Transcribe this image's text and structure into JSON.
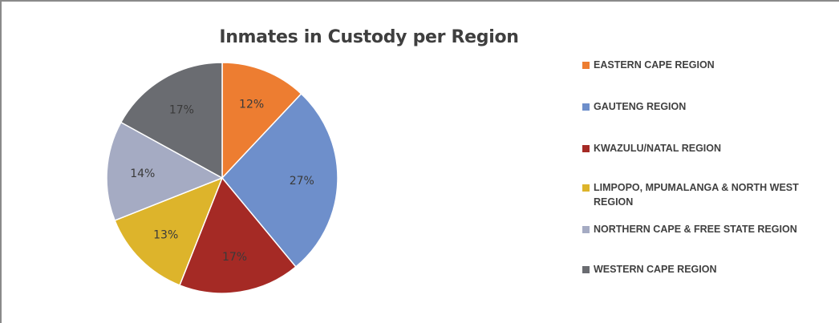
{
  "chart_data": {
    "type": "pie",
    "title": "Inmates in Custody per Region",
    "legend_position": "right",
    "categories": [
      "EASTERN CAPE REGION",
      "GAUTENG REGION",
      "KWAZULU/NATAL REGION",
      "LIMPOPO, MPUMALANGA & NORTH WEST REGION",
      "NORTHERN CAPE & FREE STATE REGION",
      "WESTERN CAPE REGION"
    ],
    "values": [
      12,
      27,
      17,
      13,
      14,
      17
    ],
    "data_labels": [
      "12%",
      "27%",
      "17%",
      "13%",
      "14%",
      "17%"
    ],
    "colors": [
      "#ED7D31",
      "#6E8FCB",
      "#A52A25",
      "#DDB42B",
      "#A5ABC3",
      "#6A6C71"
    ]
  }
}
